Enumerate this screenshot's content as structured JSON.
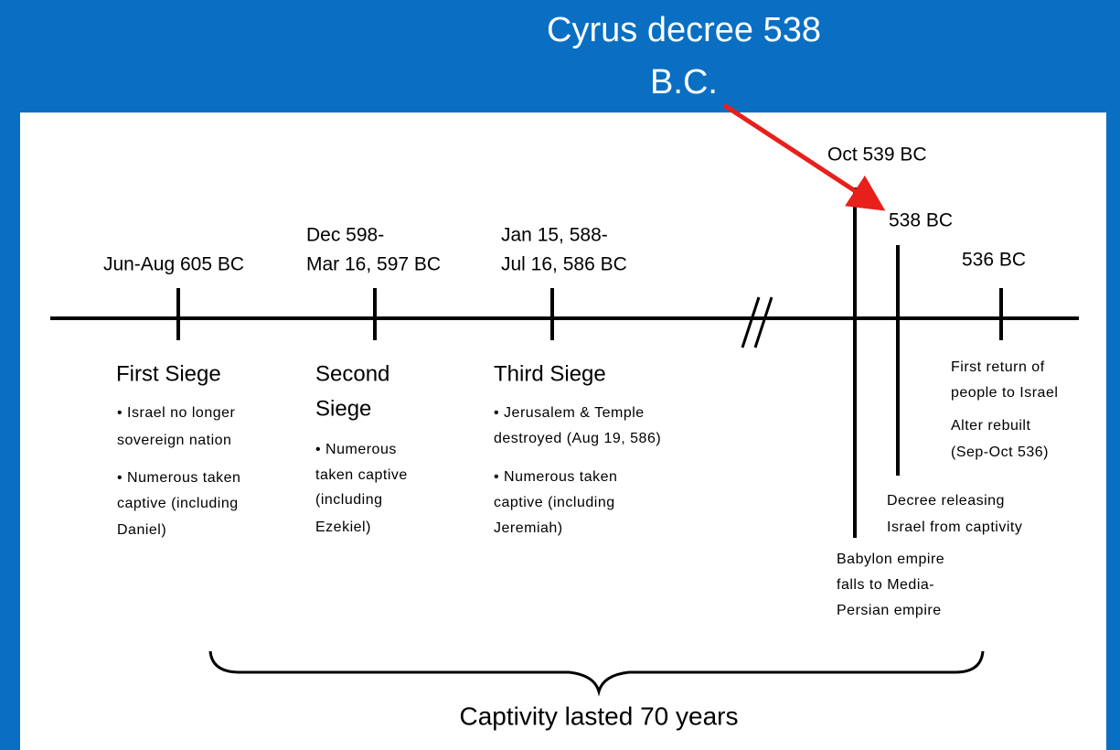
{
  "title": [
    "Cyrus decree 538",
    "B.C."
  ],
  "events": [
    {
      "date": [
        "Jun-Aug 605 BC"
      ],
      "heading": [
        "First Siege"
      ],
      "notes": [
        "• Israel no longer",
        "sovereign nation",
        "• Numerous taken",
        "captive (including",
        "Daniel)"
      ]
    },
    {
      "date": [
        "Dec 598-",
        "Mar 16, 597 BC"
      ],
      "heading": [
        "Second",
        "Siege"
      ],
      "notes": [
        "• Numerous",
        "taken captive",
        "(including",
        "Ezekiel)"
      ]
    },
    {
      "date": [
        "Jan 15, 588-",
        "Jul 16, 586 BC"
      ],
      "heading": [
        "Third Siege"
      ],
      "notes": [
        "• Jerusalem & Temple",
        "destroyed (Aug 19, 586)",
        "• Numerous taken",
        "captive (including",
        "Jeremiah)"
      ]
    },
    {
      "date": [
        "Oct 539 BC"
      ],
      "notes": [
        "Babylon empire",
        "falls to Media-",
        "Persian empire"
      ]
    },
    {
      "date": [
        "538 BC"
      ],
      "notes": [
        "Decree releasing",
        "Israel from captivity"
      ]
    },
    {
      "date": [
        "536 BC"
      ],
      "notes": [
        "First return of",
        "people to Israel",
        "Alter rebuilt",
        "(Sep-Oct 536)"
      ]
    }
  ],
  "footer": "Captivity lasted 70 years"
}
